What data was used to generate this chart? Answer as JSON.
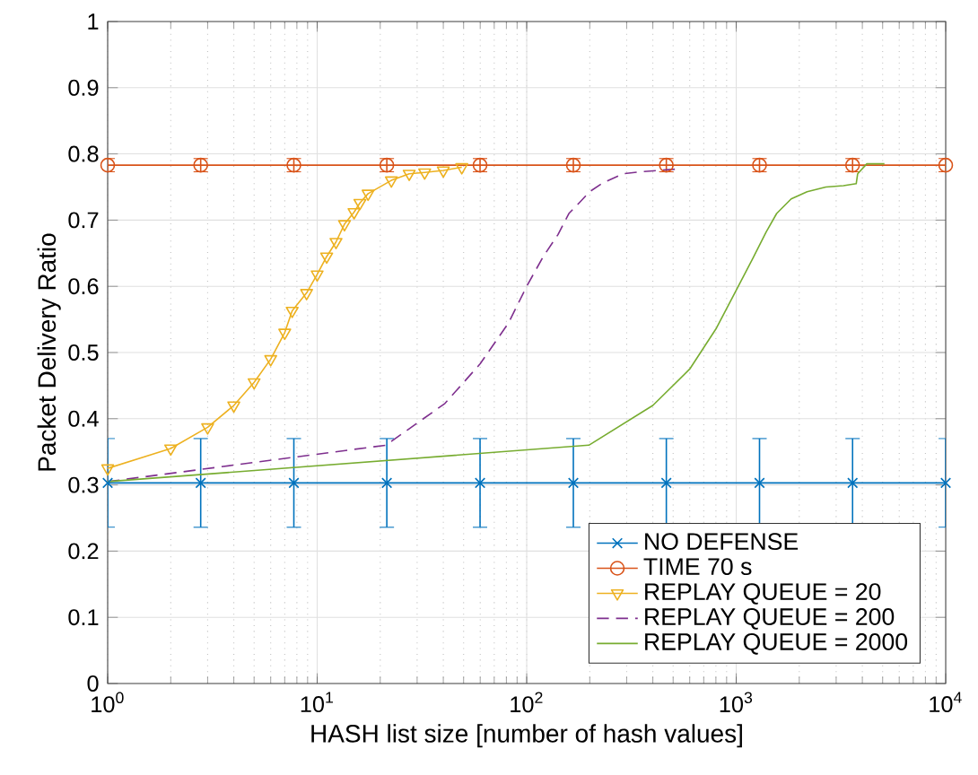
{
  "chart_data": {
    "type": "line",
    "xlabel": "HASH list size [number of hash values]",
    "ylabel": "Packet Delivery Ratio",
    "log": "x",
    "xlim": [
      1,
      10000
    ],
    "ylim": [
      0,
      1
    ],
    "xticks": [
      {
        "value": 1,
        "label": "10$^{0}$"
      },
      {
        "value": 10,
        "label": "10$^{1}$"
      },
      {
        "value": 100,
        "label": "10$^{2}$"
      },
      {
        "value": 1000,
        "label": "10$^{3}$"
      },
      {
        "value": 10000,
        "label": "10$^{4}$"
      }
    ],
    "yticks": [
      0,
      0.1,
      0.2,
      0.3,
      0.4,
      0.5,
      0.6,
      0.7,
      0.8,
      0.9,
      1
    ],
    "grid": true,
    "legend": "bottom right",
    "series": [
      {
        "name": "NO DEFENSE",
        "color": "#0072bd",
        "marker": "cross",
        "line_style": "solid",
        "x": [
          1,
          2.78,
          7.74,
          21.5,
          59.9,
          167,
          464,
          1292,
          3594,
          10000
        ],
        "values": [
          0.303,
          0.303,
          0.303,
          0.303,
          0.303,
          0.303,
          0.303,
          0.303,
          0.303,
          0.303
        ],
        "errors": [
          0.067,
          0.067,
          0.067,
          0.067,
          0.067,
          0.067,
          0.067,
          0.067,
          0.067,
          0.067
        ]
      },
      {
        "name": "TIME 70 s",
        "color": "#d95319",
        "marker": "circle",
        "line_style": "solid",
        "x": [
          1,
          2.78,
          7.74,
          21.5,
          59.9,
          167,
          464,
          1292,
          3594,
          10000
        ],
        "values": [
          0.783,
          0.783,
          0.783,
          0.783,
          0.783,
          0.783,
          0.783,
          0.783,
          0.783,
          0.783
        ],
        "errors": [
          0.01,
          0.01,
          0.01,
          0.01,
          0.01,
          0.01,
          0.01,
          0.01,
          0.01,
          0.01
        ]
      },
      {
        "name": "REPLAY QUEUE = 20",
        "color": "#edb120",
        "marker": "triangle",
        "line_style": "solid",
        "x": [
          1,
          2,
          3,
          4,
          5,
          6,
          7,
          7.6,
          8.9,
          10,
          11.1,
          12.3,
          13.5,
          15,
          16,
          17.5,
          22.6,
          27.5,
          32.6,
          40,
          49
        ],
        "values": [
          0.325,
          0.355,
          0.387,
          0.42,
          0.455,
          0.49,
          0.53,
          0.563,
          0.59,
          0.618,
          0.645,
          0.667,
          0.694,
          0.712,
          0.726,
          0.74,
          0.76,
          0.77,
          0.772,
          0.775,
          0.78
        ]
      },
      {
        "name": "REPLAY QUEUE = 200",
        "color": "#7e2f8e",
        "marker": "none",
        "line_style": "dashed",
        "x": [
          1,
          21.3,
          40.7,
          60,
          82,
          100,
          120,
          141,
          159,
          178,
          200,
          230,
          288,
          350,
          426,
          513
        ],
        "values": [
          0.305,
          0.36,
          0.423,
          0.483,
          0.545,
          0.6,
          0.645,
          0.678,
          0.71,
          0.726,
          0.743,
          0.756,
          0.77,
          0.773,
          0.775,
          0.777
        ]
      },
      {
        "name": "REPLAY QUEUE = 2000",
        "color": "#77ac30",
        "marker": "none",
        "line_style": "solid",
        "x": [
          1,
          198,
          400,
          600,
          805,
          1000,
          1200,
          1390,
          1560,
          1830,
          2180,
          2680,
          3250,
          3740,
          3800,
          4200,
          5100
        ],
        "values": [
          0.305,
          0.36,
          0.42,
          0.475,
          0.537,
          0.594,
          0.642,
          0.682,
          0.71,
          0.732,
          0.743,
          0.75,
          0.752,
          0.755,
          0.77,
          0.785,
          0.785
        ]
      }
    ]
  }
}
